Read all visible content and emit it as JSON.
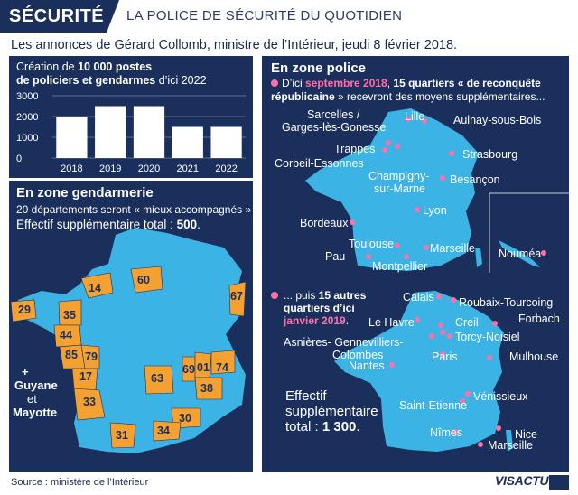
{
  "header": {
    "tag": "SÉCURITÉ",
    "title": "LA POLICE DE SÉCURITÉ DU QUOTIDIEN"
  },
  "subtitle": "Les annonces de Gérard Collomb, ministre de l’Intérieur, jeudi 8 février 2018.",
  "chart_panel": {
    "line1_a": "Création de ",
    "line1_b": "10 000 postes",
    "line2_a": "de policiers et gendarmes",
    "line2_b": " d’ici 2022"
  },
  "chart_data": {
    "type": "bar",
    "categories": [
      "2018",
      "2019",
      "2020",
      "2021",
      "2022"
    ],
    "values": [
      2000,
      2500,
      2500,
      1500,
      1500
    ],
    "yticks": [
      0,
      1000,
      2000,
      3000
    ],
    "ylim": [
      0,
      3000
    ],
    "grid": true
  },
  "gendarmerie": {
    "title": "En zone gendarmerie",
    "line1": "20 départements seront « mieux accompagnés »",
    "line2_a": "Effectif supplémentaire total : ",
    "line2_b": "500",
    "line2_c": ".",
    "dept_labels": [
      "14",
      "60",
      "67",
      "29",
      "35",
      "44",
      "85",
      "79",
      "17",
      "33",
      "63",
      "69",
      "01",
      "74",
      "38",
      "30",
      "34",
      "31"
    ],
    "overseas_plus": "+",
    "overseas_1": "Guyane",
    "overseas_2": "et",
    "overseas_3": "Mayotte"
  },
  "police": {
    "title": "En zone police",
    "line1_a": "D’ici ",
    "line1_b": "septembre 2018",
    "line1_c": ", ",
    "line1_d": "15 quartiers « de reconquête",
    "line2_a": "républicaine",
    "line2_b": " » recevront des moyens supplémentaires...",
    "cities1": [
      "Sarcelles /",
      "Garges-lès-Gonesse",
      "Lille",
      "Aulnay-sous-Bois",
      "Trappes",
      "Strasbourg",
      "Corbeil-Essonnes",
      "Champigny-",
      "sur-Marne",
      "Besançon",
      "Lyon",
      "Bordeaux",
      "Toulouse",
      "Marseille",
      "Pau",
      "Montpellier",
      "Nouméa"
    ],
    "line3_a": "... puis ",
    "line3_b": "15 autres",
    "line4": "quartiers d’ici",
    "line5": "janvier 2019",
    "line5_end": ".",
    "cities2": [
      "Calais",
      "Roubaix-Tourcoing",
      "Forbach",
      "Le Havre",
      "Creil",
      "Asnières- Gennevilliers-",
      "Torcy-Noisiel",
      "Colombes",
      "Mulhouse",
      "Nantes",
      "Paris",
      "Vénissieux",
      "Saint-Etienne",
      "Nîmes",
      "Nice",
      "Marseille"
    ],
    "total_1": "Effectif",
    "total_2": "supplémentaire",
    "total_3a": "total : ",
    "total_3b": "1 300",
    "total_3c": "."
  },
  "footer": {
    "source": "Source : ministère de l’Intérieur",
    "logo": "VISACTU"
  },
  "colors": {
    "navy": "#1b2f5c",
    "map_blue": "#3bb4e5",
    "orange": "#f4a132",
    "pink": "#ff6fa8"
  }
}
